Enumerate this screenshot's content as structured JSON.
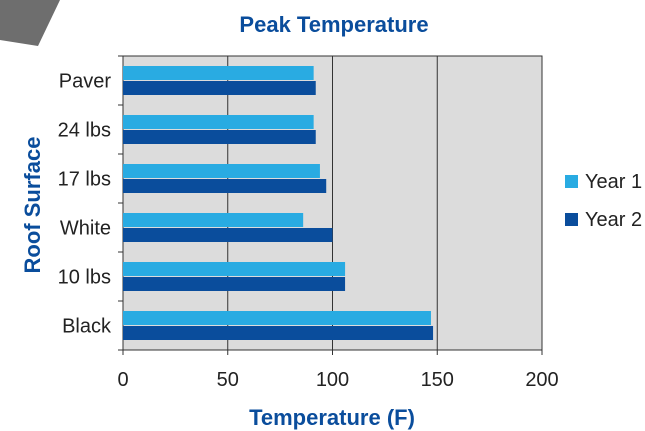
{
  "chart_data": {
    "type": "bar",
    "orientation": "horizontal",
    "title": "Peak Temperature",
    "xlabel": "Temperature (F)",
    "ylabel": "Roof Surface",
    "categories": [
      "Paver",
      "24 lbs",
      "17 lbs",
      "White",
      "10 lbs",
      "Black"
    ],
    "series": [
      {
        "name": "Year 1",
        "color": "#29abe2",
        "values": [
          91,
          91,
          94,
          86,
          106,
          147
        ]
      },
      {
        "name": "Year 2",
        "color": "#0a4d9c",
        "values": [
          92,
          92,
          97,
          100,
          106,
          148
        ]
      }
    ],
    "xlim": [
      0,
      200
    ],
    "xticks": [
      "0",
      "50",
      "100",
      "150",
      "200"
    ],
    "grid": true,
    "plot_background": "#dcdcdc",
    "legend_position": "right",
    "decoration_color": "#6e6e6e"
  }
}
